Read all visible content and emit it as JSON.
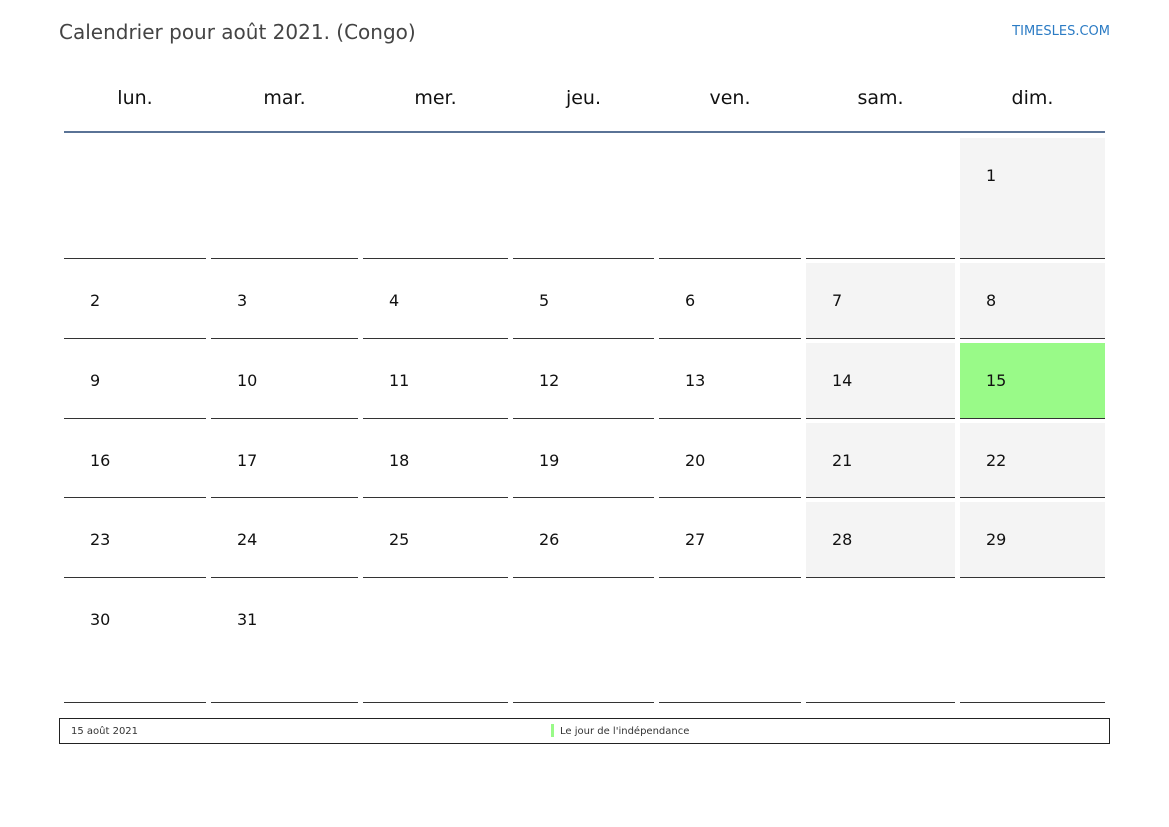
{
  "header": {
    "title": "Calendrier pour août 2021. (Congo)",
    "brand": "TIMESLES.COM"
  },
  "colors": {
    "accent": "#5a7396",
    "weekend": "#f4f4f4",
    "holiday": "#99fa88",
    "brand": "#2b7bc4"
  },
  "weekdays": [
    "lun.",
    "mar.",
    "mer.",
    "jeu.",
    "ven.",
    "sam.",
    "dim."
  ],
  "weeks": [
    [
      "",
      "",
      "",
      "",
      "",
      "",
      "1"
    ],
    [
      "2",
      "3",
      "4",
      "5",
      "6",
      "7",
      "8"
    ],
    [
      "9",
      "10",
      "11",
      "12",
      "13",
      "14",
      "15"
    ],
    [
      "16",
      "17",
      "18",
      "19",
      "20",
      "21",
      "22"
    ],
    [
      "23",
      "24",
      "25",
      "26",
      "27",
      "28",
      "29"
    ],
    [
      "30",
      "31",
      "",
      "",
      "",
      "",
      ""
    ]
  ],
  "holidays": [
    "15"
  ],
  "footer": {
    "date": "15 août 2021",
    "name": "Le jour de l'indépendance"
  }
}
